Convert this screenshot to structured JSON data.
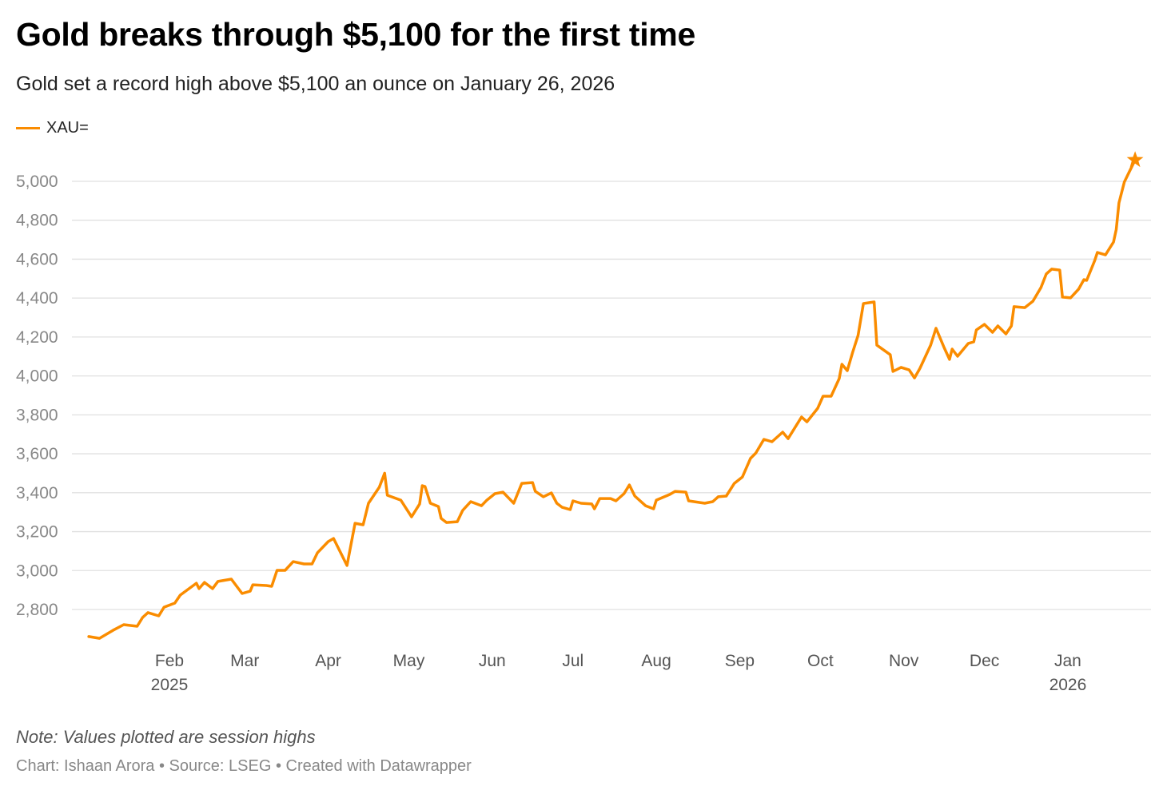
{
  "header": {
    "title": "Gold breaks through $5,100 for the first time",
    "subtitle": "Gold set a record high above $5,100 an ounce on January 26, 2026"
  },
  "footer": {
    "note": "Note: Values plotted are session highs",
    "credit": "Chart: Ishaan Arora • Source: LSEG • Created with Datawrapper"
  },
  "colors": {
    "line": "#fa8c00",
    "grid": "#e0e0e0",
    "axis_text": "#888888"
  },
  "chart_data": {
    "type": "line",
    "title": "Gold breaks through $5,100 for the first time",
    "subtitle": "Gold set a record high above $5,100 an ounce on January 26, 2026",
    "legend": {
      "placement": "top-left",
      "entries": [
        "XAU="
      ]
    },
    "grid": "horizontal",
    "ylim": [
      2600,
      5150
    ],
    "y_ticks": [
      2800,
      3000,
      3200,
      3400,
      3600,
      3800,
      4000,
      4200,
      4400,
      4600,
      4800,
      5000
    ],
    "y_tick_labels": [
      "2,800",
      "3,000",
      "3,200",
      "3,400",
      "3,600",
      "3,800",
      "4,000",
      "4,200",
      "4,400",
      "4,600",
      "4,800",
      "5,000"
    ],
    "x_ticks": [
      {
        "date": "2025-02-01",
        "label": "Feb",
        "year": "2025"
      },
      {
        "date": "2025-03-01",
        "label": "Mar"
      },
      {
        "date": "2025-04-01",
        "label": "Apr"
      },
      {
        "date": "2025-05-01",
        "label": "May"
      },
      {
        "date": "2025-06-01",
        "label": "Jun"
      },
      {
        "date": "2025-07-01",
        "label": "Jul"
      },
      {
        "date": "2025-08-01",
        "label": "Aug"
      },
      {
        "date": "2025-09-01",
        "label": "Sep"
      },
      {
        "date": "2025-10-01",
        "label": "Oct"
      },
      {
        "date": "2025-11-01",
        "label": "Nov"
      },
      {
        "date": "2025-12-01",
        "label": "Dec"
      },
      {
        "date": "2026-01-01",
        "label": "Jan",
        "year": "2026"
      }
    ],
    "end_marker": {
      "shape": "star",
      "date": "2026-01-26",
      "value": 5110
    },
    "series": [
      {
        "name": "XAU=",
        "points": [
          [
            "2025-01-02",
            2661
          ],
          [
            "2025-01-06",
            2652
          ],
          [
            "2025-01-11",
            2693
          ],
          [
            "2025-01-15",
            2722
          ],
          [
            "2025-01-20",
            2714
          ],
          [
            "2025-01-22",
            2759
          ],
          [
            "2025-01-24",
            2784
          ],
          [
            "2025-01-28",
            2767
          ],
          [
            "2025-01-30",
            2812
          ],
          [
            "2025-02-03",
            2833
          ],
          [
            "2025-02-05",
            2874
          ],
          [
            "2025-02-11",
            2935
          ],
          [
            "2025-02-12",
            2907
          ],
          [
            "2025-02-14",
            2939
          ],
          [
            "2025-02-17",
            2907
          ],
          [
            "2025-02-19",
            2944
          ],
          [
            "2025-02-24",
            2956
          ],
          [
            "2025-02-28",
            2882
          ],
          [
            "2025-03-03",
            2894
          ],
          [
            "2025-03-04",
            2927
          ],
          [
            "2025-03-09",
            2923
          ],
          [
            "2025-03-11",
            2919
          ],
          [
            "2025-03-13",
            3001
          ],
          [
            "2025-03-16",
            3001
          ],
          [
            "2025-03-19",
            3046
          ],
          [
            "2025-03-23",
            3034
          ],
          [
            "2025-03-26",
            3034
          ],
          [
            "2025-03-28",
            3091
          ],
          [
            "2025-04-01",
            3149
          ],
          [
            "2025-04-03",
            3165
          ],
          [
            "2025-04-08",
            3026
          ],
          [
            "2025-04-11",
            3243
          ],
          [
            "2025-04-14",
            3235
          ],
          [
            "2025-04-16",
            3346
          ],
          [
            "2025-04-20",
            3428
          ],
          [
            "2025-04-22",
            3500
          ],
          [
            "2025-04-23",
            3387
          ],
          [
            "2025-04-28",
            3362
          ],
          [
            "2025-05-02",
            3276
          ],
          [
            "2025-05-05",
            3342
          ],
          [
            "2025-05-06",
            3436
          ],
          [
            "2025-05-07",
            3432
          ],
          [
            "2025-05-09",
            3346
          ],
          [
            "2025-05-12",
            3329
          ],
          [
            "2025-05-13",
            3268
          ],
          [
            "2025-05-15",
            3247
          ],
          [
            "2025-05-19",
            3251
          ],
          [
            "2025-05-21",
            3309
          ],
          [
            "2025-05-24",
            3354
          ],
          [
            "2025-05-28",
            3333
          ],
          [
            "2025-05-30",
            3362
          ],
          [
            "2025-06-02",
            3395
          ],
          [
            "2025-06-05",
            3403
          ],
          [
            "2025-06-09",
            3346
          ],
          [
            "2025-06-12",
            3448
          ],
          [
            "2025-06-16",
            3452
          ],
          [
            "2025-06-17",
            3407
          ],
          [
            "2025-06-20",
            3379
          ],
          [
            "2025-06-23",
            3399
          ],
          [
            "2025-06-25",
            3346
          ],
          [
            "2025-06-27",
            3325
          ],
          [
            "2025-06-30",
            3313
          ],
          [
            "2025-07-01",
            3358
          ],
          [
            "2025-07-04",
            3346
          ],
          [
            "2025-07-08",
            3342
          ],
          [
            "2025-07-09",
            3317
          ],
          [
            "2025-07-11",
            3370
          ],
          [
            "2025-07-15",
            3370
          ],
          [
            "2025-07-17",
            3358
          ],
          [
            "2025-07-20",
            3395
          ],
          [
            "2025-07-22",
            3440
          ],
          [
            "2025-07-24",
            3383
          ],
          [
            "2025-07-28",
            3333
          ],
          [
            "2025-07-31",
            3317
          ],
          [
            "2025-08-01",
            3362
          ],
          [
            "2025-08-06",
            3391
          ],
          [
            "2025-08-08",
            3407
          ],
          [
            "2025-08-12",
            3403
          ],
          [
            "2025-08-13",
            3358
          ],
          [
            "2025-08-17",
            3350
          ],
          [
            "2025-08-19",
            3346
          ],
          [
            "2025-08-22",
            3354
          ],
          [
            "2025-08-24",
            3379
          ],
          [
            "2025-08-27",
            3383
          ],
          [
            "2025-08-30",
            3448
          ],
          [
            "2025-09-02",
            3481
          ],
          [
            "2025-09-05",
            3576
          ],
          [
            "2025-09-07",
            3604
          ],
          [
            "2025-09-10",
            3674
          ],
          [
            "2025-09-13",
            3662
          ],
          [
            "2025-09-17",
            3711
          ],
          [
            "2025-09-19",
            3678
          ],
          [
            "2025-09-24",
            3789
          ],
          [
            "2025-09-26",
            3764
          ],
          [
            "2025-09-30",
            3834
          ],
          [
            "2025-10-02",
            3896
          ],
          [
            "2025-10-05",
            3896
          ],
          [
            "2025-10-08",
            3986
          ],
          [
            "2025-10-09",
            4060
          ],
          [
            "2025-10-11",
            4027
          ],
          [
            "2025-10-13",
            4121
          ],
          [
            "2025-10-15",
            4208
          ],
          [
            "2025-10-17",
            4372
          ],
          [
            "2025-10-21",
            4380
          ],
          [
            "2025-10-22",
            4158
          ],
          [
            "2025-10-27",
            4109
          ],
          [
            "2025-10-28",
            4023
          ],
          [
            "2025-10-31",
            4044
          ],
          [
            "2025-11-03",
            4031
          ],
          [
            "2025-11-05",
            3990
          ],
          [
            "2025-11-07",
            4039
          ],
          [
            "2025-11-11",
            4158
          ],
          [
            "2025-11-13",
            4245
          ],
          [
            "2025-11-16",
            4146
          ],
          [
            "2025-11-18",
            4085
          ],
          [
            "2025-11-19",
            4138
          ],
          [
            "2025-11-21",
            4101
          ],
          [
            "2025-11-25",
            4167
          ],
          [
            "2025-11-27",
            4175
          ],
          [
            "2025-11-28",
            4236
          ],
          [
            "2025-12-01",
            4265
          ],
          [
            "2025-12-04",
            4224
          ],
          [
            "2025-12-06",
            4257
          ],
          [
            "2025-12-09",
            4216
          ],
          [
            "2025-12-11",
            4257
          ],
          [
            "2025-12-12",
            4356
          ],
          [
            "2025-12-16",
            4351
          ],
          [
            "2025-12-19",
            4384
          ],
          [
            "2025-12-22",
            4454
          ],
          [
            "2025-12-24",
            4524
          ],
          [
            "2025-12-26",
            4549
          ],
          [
            "2025-12-29",
            4544
          ],
          [
            "2025-12-30",
            4405
          ],
          [
            "2026-01-02",
            4401
          ],
          [
            "2026-01-05",
            4446
          ],
          [
            "2026-01-07",
            4495
          ],
          [
            "2026-01-08",
            4491
          ],
          [
            "2026-01-11",
            4593
          ],
          [
            "2026-01-12",
            4634
          ],
          [
            "2026-01-15",
            4622
          ],
          [
            "2026-01-18",
            4688
          ],
          [
            "2026-01-19",
            4753
          ],
          [
            "2026-01-20",
            4889
          ],
          [
            "2026-01-22",
            4996
          ],
          [
            "2026-01-26",
            5110
          ]
        ]
      }
    ]
  }
}
